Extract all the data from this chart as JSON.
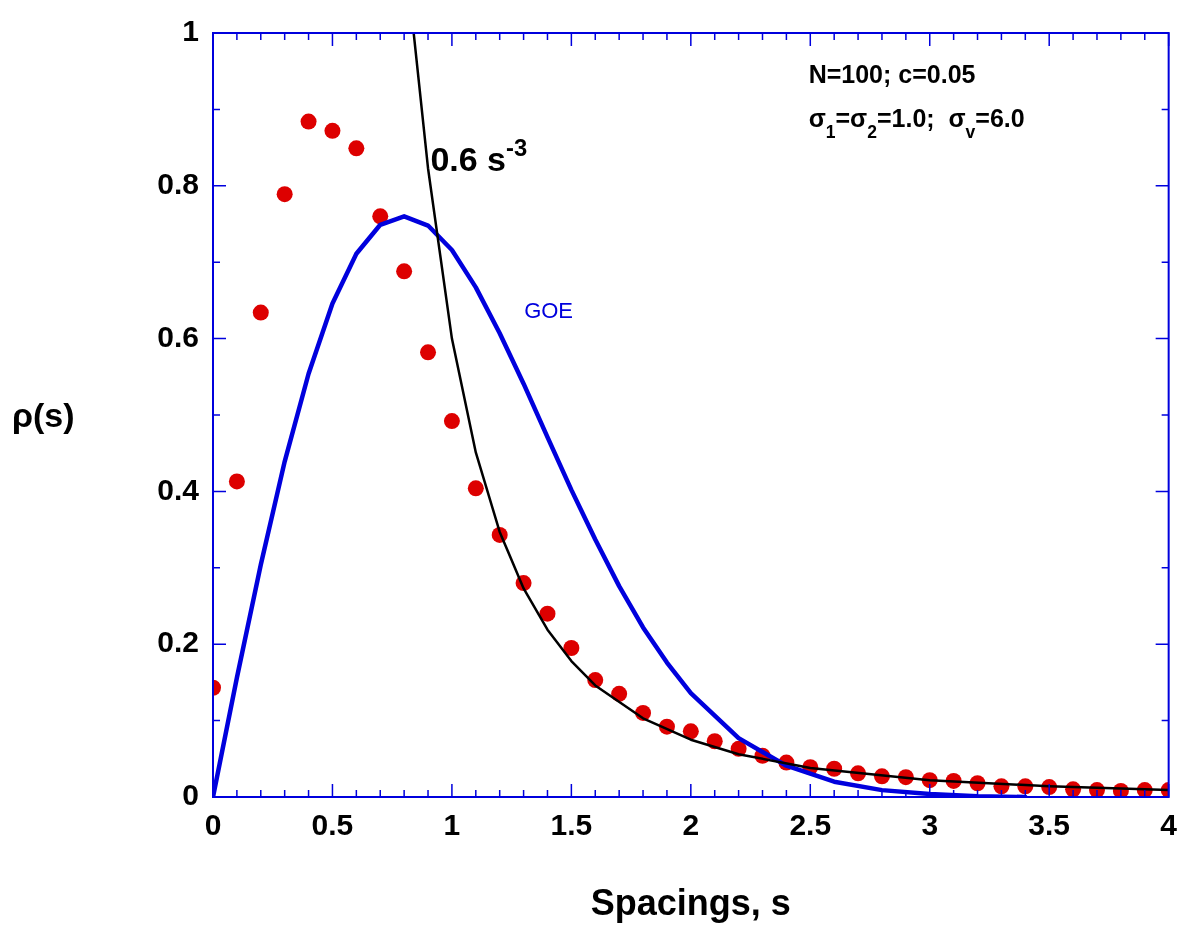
{
  "chart_data": {
    "type": "line",
    "xlabel": "Spacings, s",
    "ylabel": "ρ(s)",
    "xlim": [
      0,
      4
    ],
    "ylim": [
      0,
      1
    ],
    "xticks": [
      0,
      {
        "value": 0.1,
        "label": null
      },
      {
        "value": 0.2,
        "label": null
      },
      {
        "value": 0.3,
        "label": null
      },
      {
        "value": 0.4,
        "label": null
      },
      0.5,
      {
        "value": 0.6,
        "label": null
      },
      {
        "value": 0.7,
        "label": null
      },
      {
        "value": 0.8,
        "label": null
      },
      {
        "value": 0.9,
        "label": null
      },
      1,
      {
        "value": 1.1,
        "label": null
      },
      {
        "value": 1.2,
        "label": null
      },
      {
        "value": 1.3,
        "label": null
      },
      {
        "value": 1.4,
        "label": null
      },
      1.5,
      {
        "value": 1.6,
        "label": null
      },
      {
        "value": 1.7,
        "label": null
      },
      {
        "value": 1.8,
        "label": null
      },
      {
        "value": 1.9,
        "label": null
      },
      2,
      {
        "value": 2.1,
        "label": null
      },
      {
        "value": 2.2,
        "label": null
      },
      {
        "value": 2.3,
        "label": null
      },
      {
        "value": 2.4,
        "label": null
      },
      2.5,
      {
        "value": 2.6,
        "label": null
      },
      {
        "value": 2.7,
        "label": null
      },
      {
        "value": 2.8,
        "label": null
      },
      {
        "value": 2.9,
        "label": null
      },
      3,
      {
        "value": 3.1,
        "label": null
      },
      {
        "value": 3.2,
        "label": null
      },
      {
        "value": 3.3,
        "label": null
      },
      {
        "value": 3.4,
        "label": null
      },
      3.5,
      {
        "value": 3.6,
        "label": null
      },
      {
        "value": 3.7,
        "label": null
      },
      {
        "value": 3.8,
        "label": null
      },
      {
        "value": 3.9,
        "label": null
      },
      4
    ],
    "yticks": [
      0,
      {
        "value": 0.1,
        "label": null
      },
      0.2,
      {
        "value": 0.3,
        "label": null
      },
      0.4,
      {
        "value": 0.5,
        "label": null
      },
      0.6,
      {
        "value": 0.7,
        "label": null
      },
      0.8,
      {
        "value": 0.9,
        "label": null
      },
      1
    ],
    "grid": false,
    "legend": false,
    "series": [
      {
        "type": "scatter",
        "marker": "circle",
        "color": "#dd0000",
        "x": [
          0,
          0.1,
          0.2,
          0.3,
          0.4,
          0.5,
          0.6,
          0.7,
          0.8,
          0.9,
          1.0,
          1.1,
          1.2,
          1.3,
          1.4,
          1.5,
          1.6,
          1.7,
          1.8,
          1.9,
          2.0,
          2.1,
          2.2,
          2.3,
          2.4,
          2.5,
          2.6,
          2.7,
          2.8,
          2.9,
          3.0,
          3.1,
          3.2,
          3.3,
          3.4,
          3.5,
          3.6,
          3.7,
          3.8,
          3.9,
          4.0
        ],
        "values": [
          0.143,
          0.413,
          0.634,
          0.789,
          0.884,
          0.872,
          0.849,
          0.76,
          0.688,
          0.582,
          0.492,
          0.404,
          0.343,
          0.28,
          0.24,
          0.195,
          0.153,
          0.135,
          0.11,
          0.092,
          0.086,
          0.073,
          0.063,
          0.054,
          0.045,
          0.039,
          0.037,
          0.031,
          0.027,
          0.026,
          0.022,
          0.021,
          0.018,
          0.014,
          0.014,
          0.013,
          0.01,
          0.009,
          0.008,
          0.009,
          0.009
        ]
      },
      {
        "name": "GOE",
        "marker": "none",
        "line_style": "solid",
        "color": "#0000dd",
        "x": [
          0,
          0.1,
          0.2,
          0.3,
          0.4,
          0.5,
          0.6,
          0.7,
          0.8,
          0.9,
          1.0,
          1.1,
          1.2,
          1.3,
          1.4,
          1.5,
          1.6,
          1.7,
          1.8,
          1.9,
          2.0,
          2.2,
          2.4,
          2.6,
          2.8,
          3.0,
          3.2,
          3.4
        ],
        "values": [
          0,
          0.156,
          0.304,
          0.439,
          0.554,
          0.646,
          0.711,
          0.749,
          0.76,
          0.748,
          0.716,
          0.667,
          0.607,
          0.541,
          0.471,
          0.402,
          0.337,
          0.276,
          0.222,
          0.176,
          0.136,
          0.077,
          0.041,
          0.02,
          0.009,
          0.004,
          0.001,
          0
        ]
      },
      {
        "marker": "none",
        "line_style": "solid",
        "color": "#000000",
        "x": [
          0.84,
          0.9,
          1.0,
          1.1,
          1.2,
          1.3,
          1.4,
          1.5,
          1.6,
          1.8,
          2.0,
          2.2,
          2.5,
          3.0,
          3.5,
          4.0
        ],
        "values": [
          1.0,
          0.823,
          0.6,
          0.451,
          0.347,
          0.273,
          0.219,
          0.178,
          0.146,
          0.103,
          0.075,
          0.056,
          0.038,
          0.022,
          0.014,
          0.009
        ]
      }
    ],
    "annotations": [
      {
        "text": "0.6 s$^{-3}$",
        "x": 0.91,
        "y": 0.82
      },
      "N=100; c=0.05",
      "σ$_{1}$=σ$_{2}$=1.0;  σ$_{v}$=6.0"
    ]
  }
}
